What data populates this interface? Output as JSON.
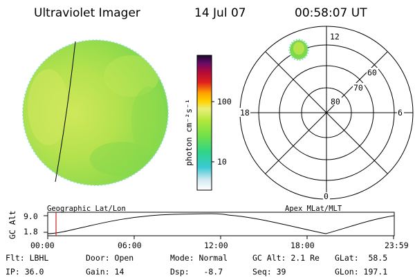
{
  "header": {
    "title": "Ultraviolet Imager",
    "date": "14 Jul 07",
    "time": "00:58:07 UT"
  },
  "colorbar": {
    "unit_label": "photon cm⁻²s⁻¹",
    "tick_labels": [
      "100",
      "10"
    ],
    "colors": [
      "#ffffff",
      "#cfe8ef",
      "#39c9d4",
      "#2fd48a",
      "#6fe04a",
      "#b4e83a",
      "#e8f07a",
      "#ffa200",
      "#e0201c",
      "#b00a3a",
      "#6a0a6a",
      "#1a0a2a"
    ]
  },
  "polar": {
    "mlt_labels": {
      "top": "12",
      "left": "18",
      "right": "6",
      "bottom": "0"
    },
    "lat_labels": [
      "60",
      "70",
      "80"
    ]
  },
  "timeline": {
    "geo_label": "Geographic Lat/Lon",
    "apex_label": "Apex MLat/MLT",
    "y_title": "GC Alt",
    "y_ticks": [
      "9.0",
      "1.8"
    ],
    "x_ticks": [
      "00:00",
      "06:00",
      "12:00",
      "18:00",
      "23:59"
    ]
  },
  "status": {
    "flt": "Flt: LBHL",
    "ip": "IP: 36.0",
    "door": "Door: Open",
    "gain": "Gain: 14",
    "mode": "Mode: Normal",
    "dsp": "Dsp:   -8.7",
    "gcalt": "GC Alt: 2.1 Re",
    "seq": "Seq: 39",
    "glat": "GLat:  58.5",
    "glon": "GLon: 197.1"
  },
  "colors": {
    "disk_base": "#a8df4a",
    "disk_bright": "#c8e85a",
    "disk_green": "#7ed84e",
    "limb": "#5fd8d8",
    "marker": "#cc2222"
  }
}
